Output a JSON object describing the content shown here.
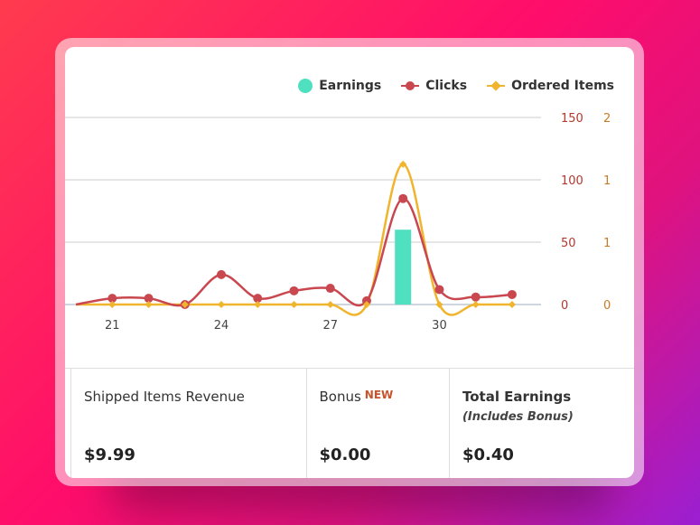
{
  "legend": {
    "earnings": "Earnings",
    "clicks": "Clicks",
    "ordered_items": "Ordered Items"
  },
  "colors": {
    "earnings": "#4fe0c0",
    "clicks": "#c9474f",
    "ordered_items": "#f0b42d",
    "axis_clicks": "#b2382e",
    "axis_ordered": "#c77b25"
  },
  "chart_data": {
    "type": "line",
    "x": [
      20,
      21,
      22,
      23,
      24,
      25,
      26,
      27,
      28,
      29,
      30,
      31,
      32
    ],
    "x_ticks": [
      "21",
      "24",
      "27",
      "30"
    ],
    "series": [
      {
        "name": "Clicks",
        "axis": "left",
        "values": [
          0,
          5,
          5,
          0,
          24,
          5,
          11,
          13,
          3,
          85,
          12,
          6,
          8
        ]
      },
      {
        "name": "Ordered Items",
        "axis": "right",
        "values": [
          0,
          0,
          0,
          0,
          0,
          0,
          0,
          0,
          0,
          1.5,
          0,
          0,
          0
        ]
      },
      {
        "name": "Earnings",
        "type": "bar",
        "values": [
          0,
          0,
          0,
          0,
          0,
          0,
          0,
          0,
          0,
          0.4,
          0,
          0,
          0
        ]
      }
    ],
    "y_left_ticks": [
      "150",
      "100",
      "50",
      "0"
    ],
    "y_right_ticks": [
      "2",
      "1",
      "1",
      "0"
    ],
    "ylim_left": [
      0,
      150
    ],
    "ylim_right": [
      0,
      2
    ],
    "ylim_earnings": [
      0,
      1
    ],
    "grid": true,
    "legend_position": "top-right"
  },
  "stats": {
    "shipped_label": "Shipped Items Revenue",
    "shipped_value": "$9.99",
    "bonus_label": "Bonus",
    "bonus_badge": "NEW",
    "bonus_value": "$0.00",
    "total_label": "Total Earnings",
    "total_sub": "(Includes Bonus)",
    "total_value": "$0.40"
  }
}
